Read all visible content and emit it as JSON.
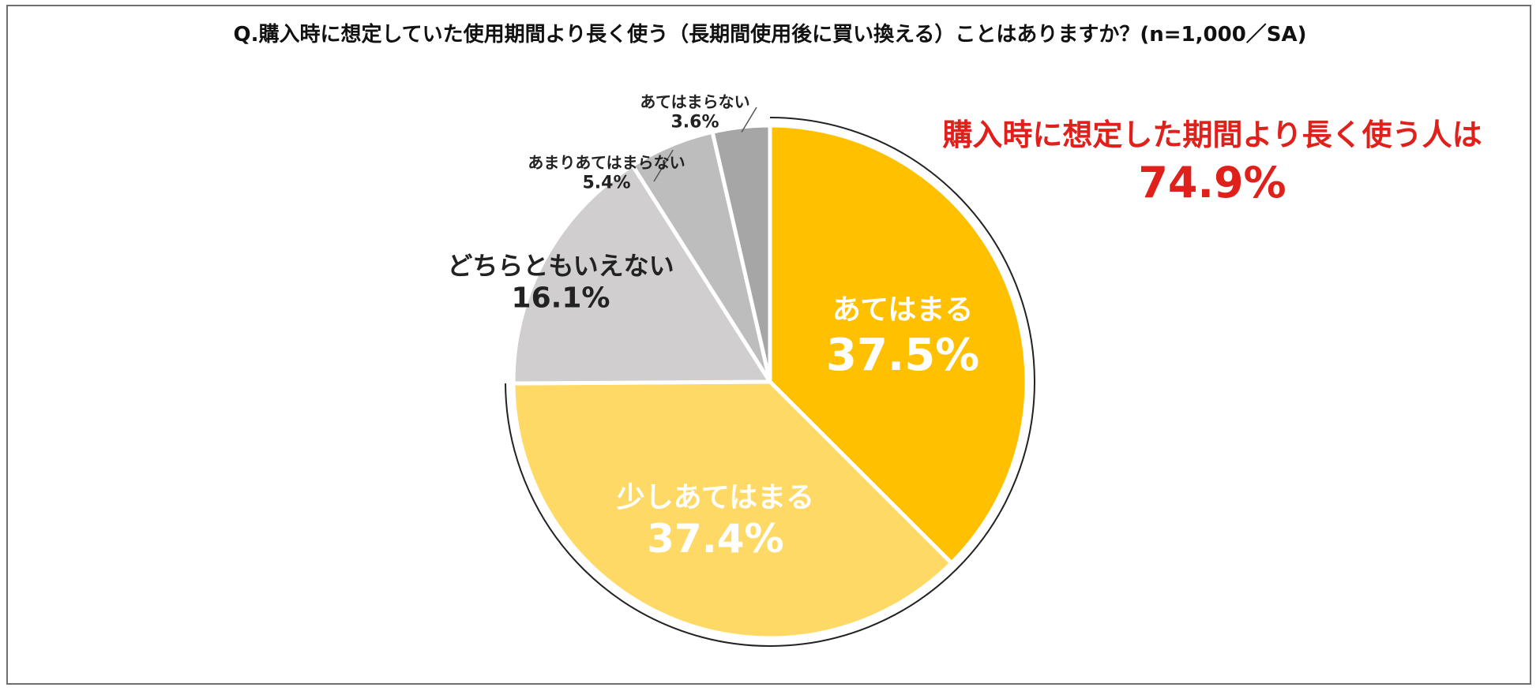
{
  "chart_data": {
    "type": "pie",
    "title": "Q.購入時に想定していた使用期間より長く使う（長期間使用後に買い換える）ことはありますか？(n=1,000／SA)",
    "slices": [
      {
        "label": "あてはまる",
        "value": 37.5,
        "value_label": "37.5%",
        "color": "#FFC000"
      },
      {
        "label": "少しあてはまる",
        "value": 37.4,
        "value_label": "37.4%",
        "color": "#FFD966"
      },
      {
        "label": "どちらともいえない",
        "value": 16.1,
        "value_label": "16.1%",
        "color": "#D0CECE"
      },
      {
        "label": "あまりあてはまらない",
        "value": 5.4,
        "value_label": "5.4%",
        "color": "#BDBDBD"
      },
      {
        "label": "あてはまらない",
        "value": 3.6,
        "value_label": "3.6%",
        "color": "#A6A6A6"
      }
    ],
    "annotation": {
      "text": "購入時に想定した期間より長く使う人は",
      "value": "74.9%",
      "color": "#E0201B"
    }
  }
}
